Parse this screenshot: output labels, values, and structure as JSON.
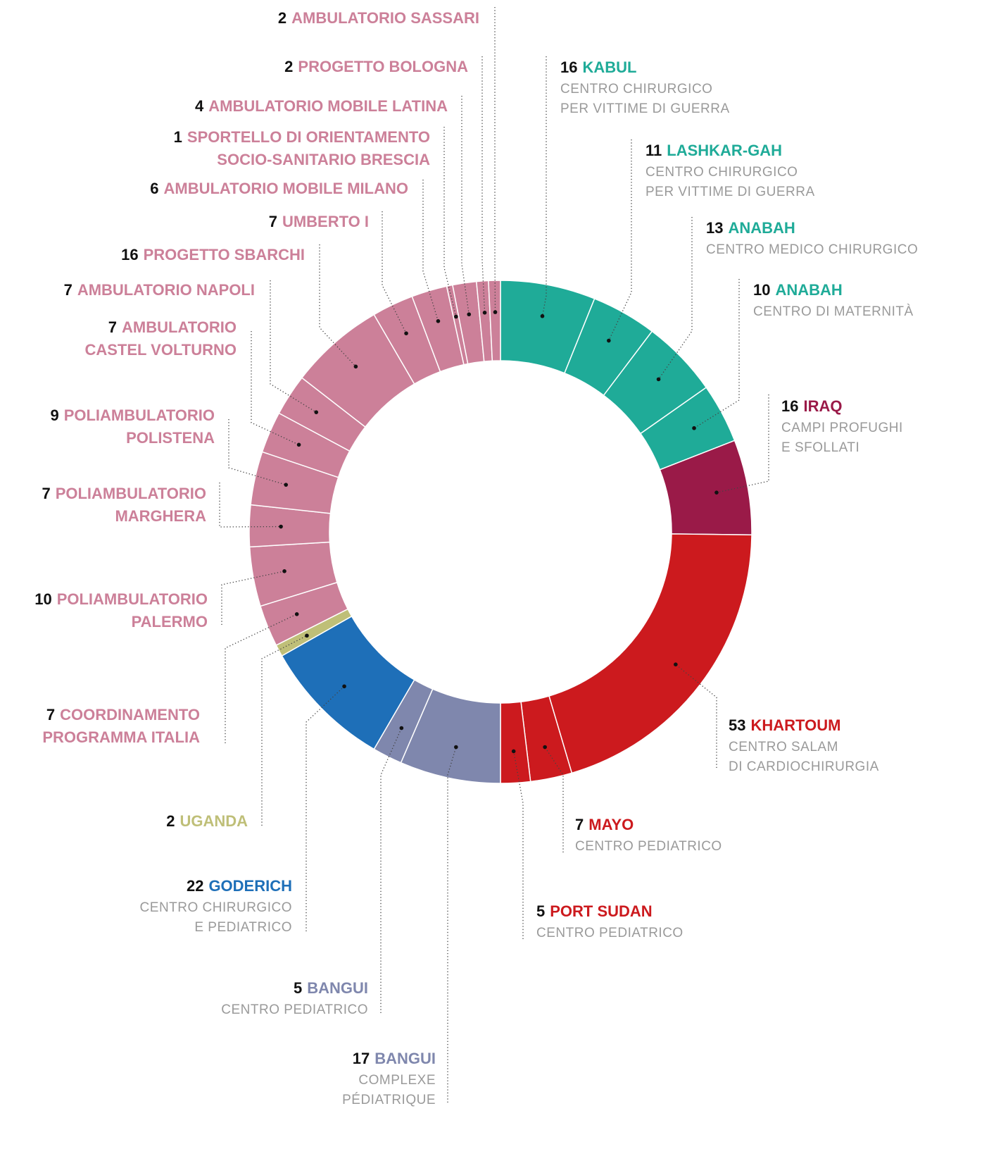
{
  "chart_data": {
    "type": "donut",
    "segments": [
      {
        "value": 16,
        "name": [
          "KABUL"
        ],
        "subtitle": [
          "CENTRO CHIRURGICO",
          "PER VITTIME DI GUERRA"
        ],
        "color": "#1fab98"
      },
      {
        "value": 11,
        "name": [
          "LASHKAR-GAH"
        ],
        "subtitle": [
          "CENTRO CHIRURGICO",
          "PER VITTIME DI GUERRA"
        ],
        "color": "#1fab98"
      },
      {
        "value": 13,
        "name": [
          "ANABAH"
        ],
        "subtitle": [
          "CENTRO MEDICO CHIRURGICO"
        ],
        "color": "#1fab98"
      },
      {
        "value": 10,
        "name": [
          "ANABAH"
        ],
        "subtitle": [
          "CENTRO DI MATERNITÀ"
        ],
        "color": "#1fab98"
      },
      {
        "value": 16,
        "name": [
          "IRAQ"
        ],
        "subtitle": [
          "CAMPI PROFUGHI",
          "E SFOLLATI"
        ],
        "color": "#9a1a48"
      },
      {
        "value": 53,
        "name": [
          "KHARTOUM"
        ],
        "subtitle": [
          "CENTRO SALAM",
          "DI CARDIOCHIRURGIA"
        ],
        "color": "#cc1a1e"
      },
      {
        "value": 7,
        "name": [
          "MAYO"
        ],
        "subtitle": [
          "CENTRO PEDIATRICO"
        ],
        "color": "#cc1a1e"
      },
      {
        "value": 5,
        "name": [
          "PORT SUDAN"
        ],
        "subtitle": [
          "CENTRO PEDIATRICO"
        ],
        "color": "#cc1a1e"
      },
      {
        "value": 17,
        "name": [
          "BANGUI"
        ],
        "subtitle": [
          "COMPLEXE",
          "PÉDIATRIQUE"
        ],
        "color": "#7f87ad"
      },
      {
        "value": 5,
        "name": [
          "BANGUI"
        ],
        "subtitle": [
          "CENTRO PEDIATRICO"
        ],
        "color": "#7f87ad"
      },
      {
        "value": 22,
        "name": [
          "GODERICH"
        ],
        "subtitle": [
          "CENTRO CHIRURGICO",
          "E PEDIATRICO"
        ],
        "color": "#1e6fb8"
      },
      {
        "value": 2,
        "name": [
          "UGANDA"
        ],
        "subtitle": [],
        "color": "#bfbf78"
      },
      {
        "value": 7,
        "name": [
          "COORDINAMENTO",
          "PROGRAMMA ITALIA"
        ],
        "subtitle": [],
        "color": "#cc8099"
      },
      {
        "value": 10,
        "name": [
          "POLIAMBULATORIO",
          "PALERMO"
        ],
        "subtitle": [],
        "color": "#cc8099"
      },
      {
        "value": 7,
        "name": [
          "POLIAMBULATORIO",
          "MARGHERA"
        ],
        "subtitle": [],
        "color": "#cc8099"
      },
      {
        "value": 9,
        "name": [
          "POLIAMBULATORIO",
          "POLISTENA"
        ],
        "subtitle": [],
        "color": "#cc8099"
      },
      {
        "value": 7,
        "name": [
          "AMBULATORIO",
          "CASTEL VOLTURNO"
        ],
        "subtitle": [],
        "color": "#cc8099"
      },
      {
        "value": 7,
        "name": [
          "AMBULATORIO NAPOLI"
        ],
        "subtitle": [],
        "color": "#cc8099"
      },
      {
        "value": 16,
        "name": [
          "PROGETTO SBARCHI"
        ],
        "subtitle": [],
        "color": "#cc8099"
      },
      {
        "value": 7,
        "name": [
          "UMBERTO I"
        ],
        "subtitle": [],
        "color": "#cc8099"
      },
      {
        "value": 6,
        "name": [
          "AMBULATORIO MOBILE MILANO"
        ],
        "subtitle": [],
        "color": "#cc8099"
      },
      {
        "value": 1,
        "name": [
          "SPORTELLO DI ORIENTAMENTO",
          "SOCIO-SANITARIO BRESCIA"
        ],
        "subtitle": [],
        "color": "#cc8099"
      },
      {
        "value": 4,
        "name": [
          "AMBULATORIO MOBILE LATINA"
        ],
        "subtitle": [],
        "color": "#cc8099"
      },
      {
        "value": 2,
        "name": [
          "PROGETTO BOLOGNA"
        ],
        "subtitle": [],
        "color": "#cc8099"
      },
      {
        "value": 2,
        "name": [
          "AMBULATORIO SASSARI"
        ],
        "subtitle": [],
        "color": "#cc8099"
      }
    ]
  }
}
